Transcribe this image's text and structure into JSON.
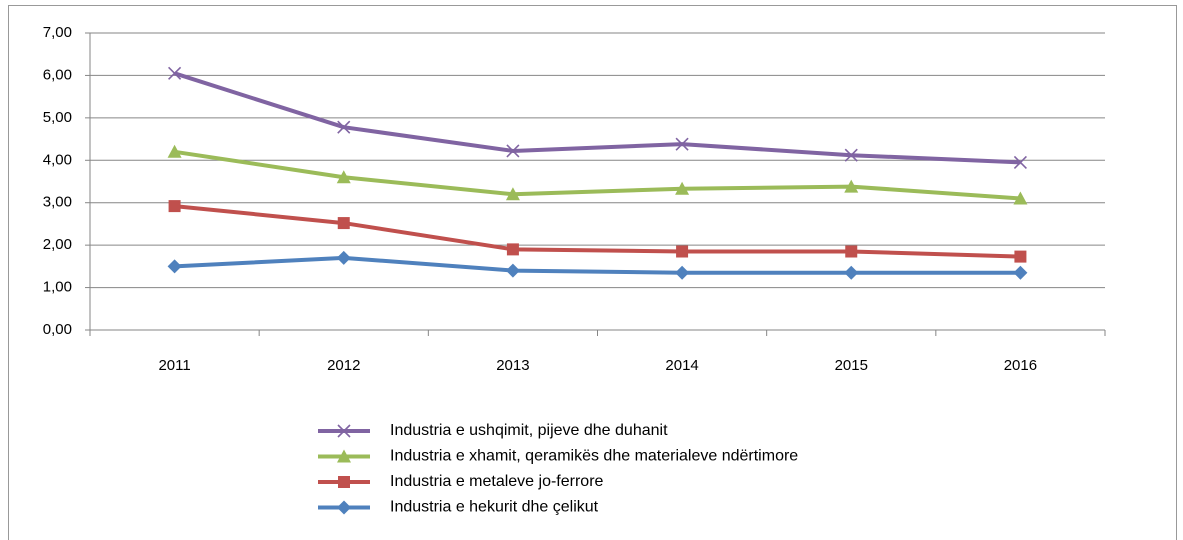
{
  "chart_data": {
    "type": "line",
    "categories": [
      "2011",
      "2012",
      "2013",
      "2014",
      "2015",
      "2016"
    ],
    "series": [
      {
        "name": "Industria e ushqimit, pijeve dhe duhanit",
        "color": "#8064a2",
        "marker": "x",
        "values": [
          6.05,
          4.78,
          4.22,
          4.38,
          4.12,
          3.95
        ]
      },
      {
        "name": "Industria e xhamit, qeramikës dhe materialeve ndërtimore",
        "color": "#9bbb59",
        "marker": "triangle",
        "values": [
          4.2,
          3.6,
          3.2,
          3.33,
          3.38,
          3.1
        ]
      },
      {
        "name": "Industria e metaleve jo-ferrore",
        "color": "#c0504d",
        "marker": "square",
        "values": [
          2.92,
          2.52,
          1.9,
          1.85,
          1.85,
          1.73
        ]
      },
      {
        "name": "Industria e hekurit dhe çelikut",
        "color": "#4f81bd",
        "marker": "diamond",
        "values": [
          1.5,
          1.7,
          1.4,
          1.35,
          1.35,
          1.35
        ]
      }
    ],
    "ylim": [
      0,
      7
    ],
    "yticks": [
      {
        "value": 0,
        "label": "0,00"
      },
      {
        "value": 1,
        "label": "1,00"
      },
      {
        "value": 2,
        "label": "2,00"
      },
      {
        "value": 3,
        "label": "3,00"
      },
      {
        "value": 4,
        "label": "4,00"
      },
      {
        "value": 5,
        "label": "5,00"
      },
      {
        "value": 6,
        "label": "6,00"
      },
      {
        "value": 7,
        "label": "7,00"
      }
    ],
    "grid": true,
    "legend": "bottom"
  }
}
